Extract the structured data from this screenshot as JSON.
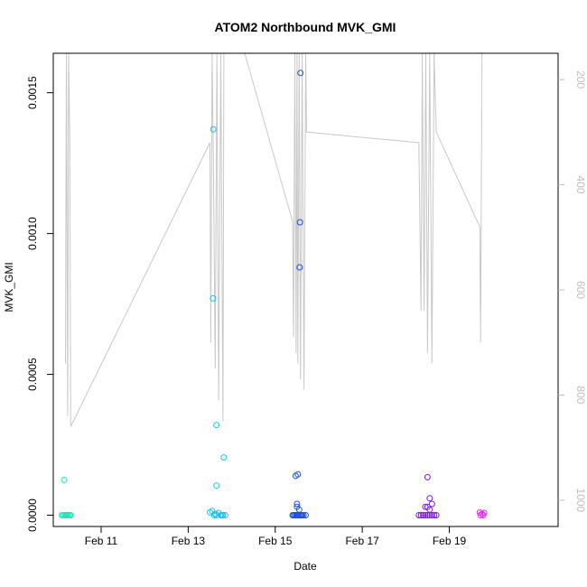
{
  "chart_data": {
    "type": "scatter",
    "title": "ATOM2 Northbound MVK_GMI",
    "xlabel": "Date",
    "ylabel": "MVK_GMI",
    "x_ticks": [
      "Feb 11",
      "Feb 13",
      "Feb 15",
      "Feb 17",
      "Feb 19"
    ],
    "x_tick_days": [
      11,
      13,
      15,
      17,
      19
    ],
    "xlim": [
      9.9,
      21.5
    ],
    "y_ticks": [
      0.0,
      0.0005,
      0.001,
      0.0015
    ],
    "y_tick_labels": [
      "0.0000",
      "0.0005",
      "0.0010",
      "0.0015"
    ],
    "ylim": [
      -4e-05,
      0.00164
    ],
    "y2_ticks": [
      200,
      400,
      600,
      800,
      1000
    ],
    "y2_tick_labels": [
      "200",
      "400",
      "600",
      "800",
      "1000"
    ],
    "y2lim": [
      1050,
      150
    ],
    "grid": false,
    "legend": "none",
    "line_color": "#c8c8c8",
    "series": [
      {
        "color": "#22e6b8",
        "points": [
          [
            10.1,
            0
          ],
          [
            10.12,
            0
          ],
          [
            10.15,
            0
          ],
          [
            10.18,
            0
          ],
          [
            10.2,
            0
          ],
          [
            10.22,
            0
          ],
          [
            10.25,
            0
          ],
          [
            10.28,
            0
          ],
          [
            10.3,
            0
          ],
          [
            10.15,
            0.000125
          ]
        ]
      },
      {
        "color": "#15c3f0",
        "points": [
          [
            13.5,
            1e-05
          ],
          [
            13.55,
            1.5e-05
          ],
          [
            13.6,
            0.0
          ],
          [
            13.62,
            5e-06
          ],
          [
            13.65,
            0.0
          ],
          [
            13.7,
            8e-06
          ],
          [
            13.75,
            0.0
          ],
          [
            13.78,
            0.0
          ],
          [
            13.8,
            0.0
          ],
          [
            13.85,
            0.0
          ],
          [
            13.58,
            0.00137
          ],
          [
            13.57,
            0.00077
          ],
          [
            13.65,
            0.00032
          ],
          [
            13.82,
            0.000205
          ],
          [
            13.65,
            0.000105
          ]
        ]
      },
      {
        "color": "#1f4ee8",
        "points": [
          [
            15.4,
            0
          ],
          [
            15.42,
            0
          ],
          [
            15.45,
            0
          ],
          [
            15.48,
            0
          ],
          [
            15.5,
            0
          ],
          [
            15.52,
            0
          ],
          [
            15.55,
            0
          ],
          [
            15.58,
            0
          ],
          [
            15.6,
            0
          ],
          [
            15.62,
            0
          ],
          [
            15.65,
            0
          ],
          [
            15.7,
            0
          ],
          [
            15.5,
            3e-05
          ],
          [
            15.55,
            2e-05
          ],
          [
            15.5,
            4e-05
          ],
          [
            15.47,
            0.00014
          ],
          [
            15.52,
            0.000145
          ],
          [
            15.58,
            0.00157
          ],
          [
            15.57,
            0.00104
          ],
          [
            15.56,
            0.00088
          ]
        ]
      },
      {
        "color": "#7a18ee",
        "points": [
          [
            18.3,
            0
          ],
          [
            18.35,
            0
          ],
          [
            18.4,
            0
          ],
          [
            18.45,
            0
          ],
          [
            18.5,
            0
          ],
          [
            18.55,
            0
          ],
          [
            18.6,
            0
          ],
          [
            18.65,
            0
          ],
          [
            18.7,
            0
          ],
          [
            18.5,
            3e-05
          ],
          [
            18.55,
            2e-05
          ],
          [
            18.6,
            4e-05
          ],
          [
            18.45,
            3e-05
          ],
          [
            18.55,
            6e-05
          ],
          [
            18.5,
            0.000135
          ]
        ]
      },
      {
        "color": "#e02ee8",
        "points": [
          [
            19.7,
            1e-05
          ],
          [
            19.72,
            0.0
          ],
          [
            19.75,
            5e-06
          ],
          [
            19.78,
            0.0
          ],
          [
            19.8,
            8e-06
          ]
        ]
      }
    ],
    "line_path": [
      [
        10.18,
        740
      ],
      [
        10.2,
        150
      ],
      [
        10.23,
        840
      ],
      [
        10.25,
        150
      ],
      [
        10.28,
        320
      ],
      [
        10.3,
        860
      ],
      [
        13.5,
        320
      ],
      [
        13.52,
        700
      ],
      [
        13.55,
        150
      ],
      [
        13.58,
        350
      ],
      [
        13.62,
        750
      ],
      [
        13.66,
        150
      ],
      [
        13.7,
        810
      ],
      [
        13.75,
        150
      ],
      [
        13.8,
        850
      ],
      [
        13.82,
        150
      ],
      [
        14.3,
        150
      ],
      [
        15.4,
        470
      ],
      [
        15.42,
        690
      ],
      [
        15.45,
        150
      ],
      [
        15.48,
        720
      ],
      [
        15.5,
        150
      ],
      [
        15.52,
        740
      ],
      [
        15.55,
        150
      ],
      [
        15.58,
        770
      ],
      [
        15.62,
        150
      ],
      [
        15.66,
        790
      ],
      [
        15.7,
        150
      ],
      [
        15.72,
        300
      ],
      [
        18.3,
        320
      ],
      [
        18.35,
        640
      ],
      [
        18.38,
        150
      ],
      [
        18.42,
        640
      ],
      [
        18.46,
        150
      ],
      [
        18.5,
        720
      ],
      [
        18.55,
        150
      ],
      [
        18.6,
        740
      ],
      [
        18.65,
        150
      ],
      [
        18.7,
        300
      ],
      [
        19.7,
        480
      ],
      [
        19.72,
        700
      ],
      [
        19.75,
        150
      ]
    ]
  }
}
